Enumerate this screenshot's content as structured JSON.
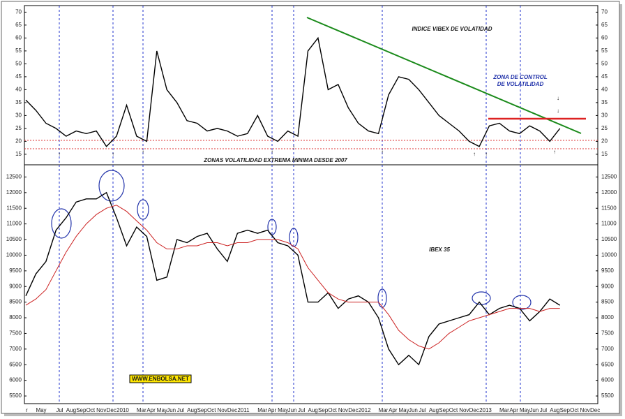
{
  "chart_data": [
    {
      "type": "line",
      "title": "INDICE VIBEX DE VOLATIDAD",
      "annotations": [
        "ZONA DE CONTROL",
        "DE VOLATILIDAD",
        "ZONAS VOLATILIDAD EXTREMA MINIMA DESDE 2007"
      ],
      "ylim": [
        12,
        72
      ],
      "yticks": [
        15,
        20,
        25,
        30,
        35,
        40,
        45,
        50,
        55,
        60,
        65,
        70
      ],
      "series": [
        {
          "color": "#000000",
          "values": [
            36,
            32,
            27,
            25,
            22,
            24,
            23,
            24,
            18,
            22,
            34,
            22,
            20,
            55,
            40,
            35,
            28,
            27,
            24,
            25,
            24,
            22,
            23,
            30,
            22,
            20,
            24,
            22,
            55,
            60,
            40,
            42,
            33,
            27,
            24,
            23,
            38,
            45,
            44,
            40,
            35,
            30,
            27,
            24,
            20,
            18,
            26,
            27,
            24,
            23,
            26,
            24,
            20,
            25,
            null,
            null,
            null
          ]
        }
      ]
    },
    {
      "type": "line",
      "title": "IBEX 35",
      "annotations": [
        "WWW.ENBOLSA.NET"
      ],
      "categories": [
        "r",
        "May",
        null,
        "Jul",
        "Aug",
        "Sep",
        "Oct",
        "Nov",
        "Dec",
        "2010",
        null,
        "Mar",
        "Apr",
        "May",
        "Jun",
        "Jul",
        "Aug",
        "Sep",
        "Oct",
        "Nov",
        "Dec",
        "2011",
        null,
        "Mar",
        "Apr",
        "May",
        "Jun",
        "Jul",
        "Aug",
        "Sep",
        "Oct",
        "Nov",
        "Dec",
        "2012",
        null,
        "Mar",
        "Apr",
        "May",
        "Jun",
        "Jul",
        "Aug",
        "Sep",
        "Oct",
        "Nov",
        "Dec",
        "2013",
        null,
        "Mar",
        "Apr",
        "May",
        "Jun",
        "Jul",
        "Aug",
        "Sep",
        "Oct",
        "Nov",
        "Dec"
      ],
      "ylim": [
        5300,
        12800
      ],
      "yticks": [
        5500,
        6000,
        6500,
        7000,
        7500,
        8000,
        8500,
        9000,
        9500,
        10000,
        10500,
        11000,
        11500,
        12000,
        12500
      ],
      "series": [
        {
          "color": "#000000",
          "values": [
            8700,
            9400,
            9800,
            10800,
            11200,
            11700,
            11800,
            11800,
            12000,
            11200,
            10300,
            10900,
            10600,
            9200,
            9300,
            10500,
            10400,
            10600,
            10700,
            10200,
            9800,
            10700,
            10800,
            10700,
            10800,
            10400,
            10300,
            10000,
            8500,
            8500,
            8800,
            8300,
            8600,
            8700,
            8500,
            8000,
            7000,
            6500,
            6800,
            6500,
            7400,
            7800,
            7900,
            8000,
            8100,
            8500,
            8100,
            8300,
            8400,
            8300,
            7900,
            8200,
            8600,
            8400,
            null,
            null,
            null
          ]
        },
        {
          "color": "#cc2222",
          "values": [
            8400,
            8600,
            8900,
            9500,
            10100,
            10600,
            11000,
            11300,
            11500,
            11600,
            11400,
            11100,
            10800,
            10400,
            10200,
            10200,
            10300,
            10300,
            10400,
            10400,
            10300,
            10400,
            10400,
            10500,
            10500,
            10500,
            10400,
            10200,
            9600,
            9200,
            8800,
            8600,
            8500,
            8500,
            8500,
            8500,
            8100,
            7600,
            7300,
            7100,
            7000,
            7200,
            7500,
            7700,
            7900,
            8000,
            8100,
            8200,
            8300,
            8300,
            8300,
            8200,
            8300,
            8300,
            null,
            null,
            null
          ]
        }
      ]
    }
  ]
}
